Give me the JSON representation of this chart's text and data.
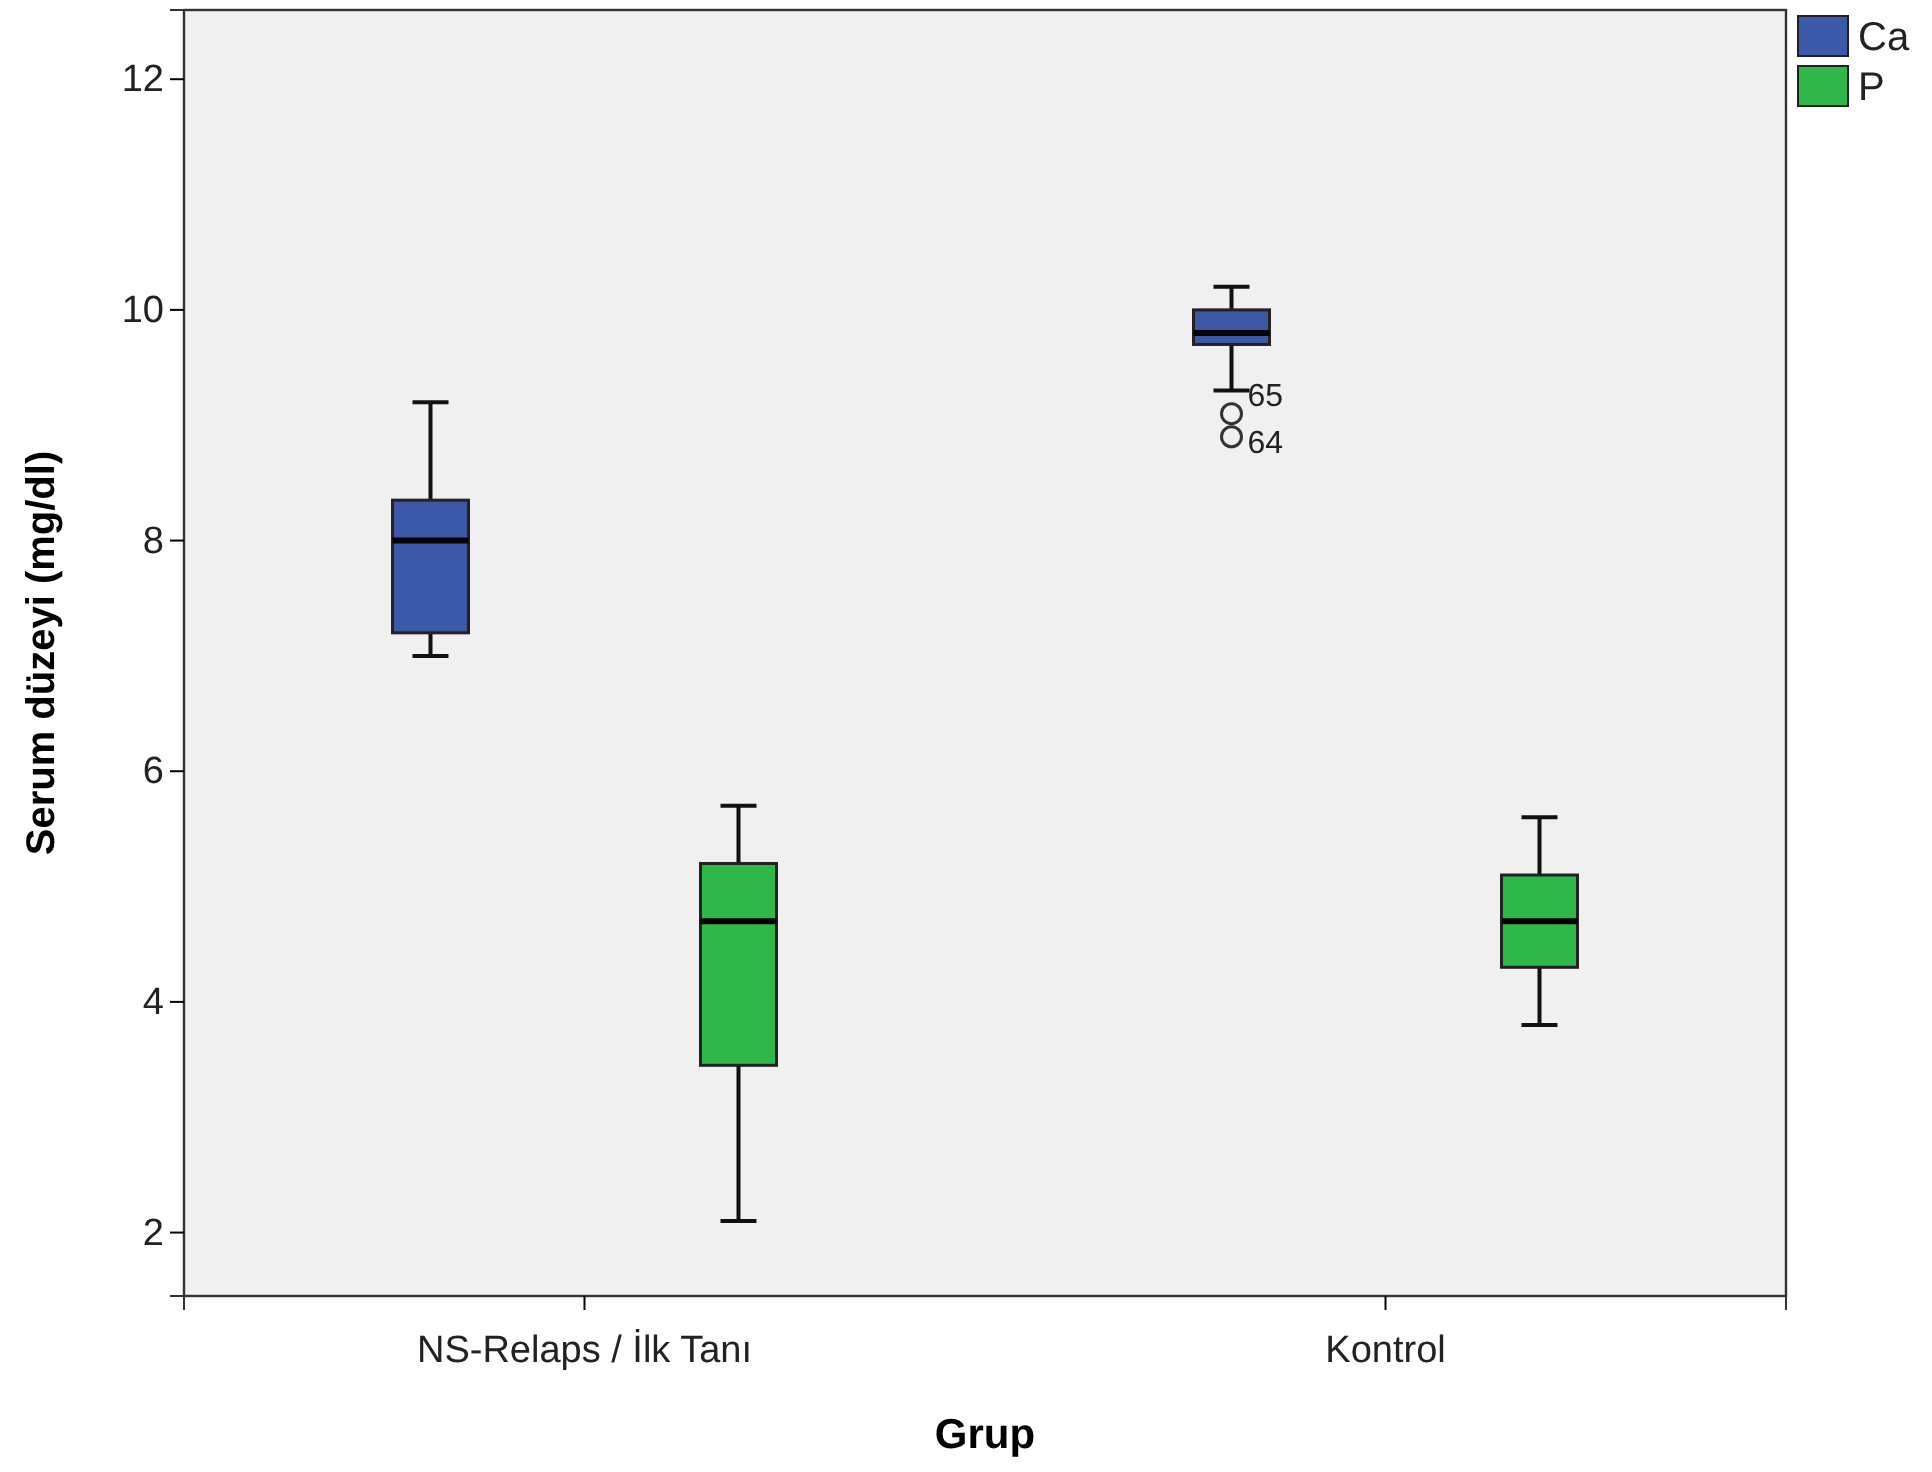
{
  "chart_data": {
    "type": "box",
    "xlabel": "Grup",
    "ylabel": "Serum düzeyi (mg/dl)",
    "categories": [
      "NS-Relaps / İlk Tanı",
      "Kontrol"
    ],
    "series": [
      {
        "name": "Ca",
        "color": "#3c58a8",
        "boxes": [
          {
            "low": 7.0,
            "q1": 7.2,
            "median": 8.0,
            "q3": 8.35,
            "high": 9.2
          },
          {
            "low": 9.3,
            "q1": 9.7,
            "median": 9.8,
            "q3": 10.0,
            "high": 10.2,
            "outliers": [
              9.1,
              8.9
            ]
          }
        ]
      },
      {
        "name": "P",
        "color": "#2eb84a",
        "boxes": [
          {
            "low": 2.1,
            "q1": 3.45,
            "median": 4.7,
            "q3": 5.2,
            "high": 5.7
          },
          {
            "low": 3.8,
            "q1": 4.3,
            "median": 4.7,
            "q3": 5.1,
            "high": 5.6
          }
        ]
      }
    ],
    "ylim": [
      1.45,
      12.6
    ],
    "yticks": [
      2,
      4,
      6,
      8,
      10,
      12
    ],
    "grid": false,
    "legend": "top right",
    "annotations": [
      "65",
      "64"
    ]
  }
}
